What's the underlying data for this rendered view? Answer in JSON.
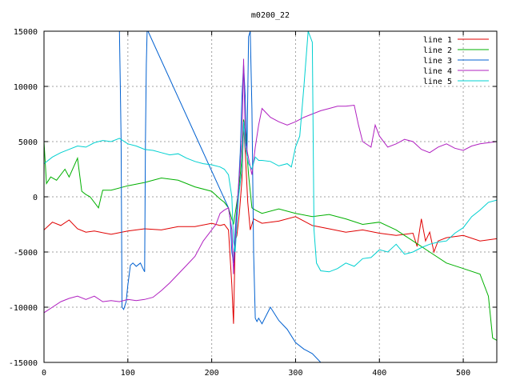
{
  "chart_data": {
    "type": "line",
    "title": "m0200_22",
    "xlim": [
      0,
      540
    ],
    "ylim": [
      -15000,
      15000
    ],
    "x_ticks": [
      0,
      100,
      200,
      300,
      400,
      500
    ],
    "y_ticks": [
      -15000,
      -10000,
      -5000,
      0,
      5000,
      10000,
      15000
    ],
    "x_tick_labels": [
      "0",
      "100",
      "200",
      "300",
      "400",
      "500"
    ],
    "y_tick_labels": [
      "-15000",
      "-10000",
      "-5000",
      "0",
      "5000",
      "10000",
      "15000"
    ],
    "grid": true,
    "legend_position": "top-right",
    "series": [
      {
        "name": "line 1",
        "color": "#e00000",
        "x": [
          0,
          10,
          20,
          30,
          40,
          50,
          60,
          80,
          100,
          120,
          140,
          160,
          180,
          200,
          210,
          215,
          220,
          224,
          226,
          228,
          230,
          233,
          236,
          238,
          240,
          243,
          246,
          250,
          255,
          260,
          280,
          300,
          320,
          340,
          360,
          380,
          400,
          420,
          440,
          445,
          450,
          455,
          460,
          465,
          470,
          480,
          500,
          520,
          540
        ],
        "y": [
          -3000,
          -2300,
          -2600,
          -2100,
          -2900,
          -3200,
          -3100,
          -3400,
          -3100,
          -2900,
          -3000,
          -2700,
          -2700,
          -2400,
          -2600,
          -2500,
          -3000,
          -8000,
          -11500,
          -4000,
          -3500,
          -1500,
          1500,
          6500,
          4000,
          -500,
          -3000,
          -2000,
          -2200,
          -2400,
          -2200,
          -1800,
          -2600,
          -2900,
          -3200,
          -3000,
          -3300,
          -3500,
          -3300,
          -4500,
          -2000,
          -4000,
          -3200,
          -5000,
          -4000,
          -3700,
          -3500,
          -4000,
          -3800
        ]
      },
      {
        "name": "line 2",
        "color": "#00b000",
        "x": [
          0,
          3,
          8,
          15,
          25,
          30,
          40,
          45,
          50,
          55,
          60,
          65,
          70,
          80,
          100,
          120,
          140,
          160,
          180,
          200,
          210,
          215,
          220,
          224,
          226,
          228,
          232,
          236,
          238,
          240,
          244,
          248,
          252,
          260,
          280,
          300,
          320,
          340,
          360,
          380,
          400,
          420,
          440,
          460,
          480,
          500,
          520,
          530,
          535,
          540
        ],
        "y": [
          5000,
          1200,
          1800,
          1500,
          2500,
          1800,
          3500,
          500,
          200,
          0,
          -500,
          -1000,
          600,
          600,
          1000,
          1300,
          1700,
          1500,
          900,
          500,
          -200,
          -500,
          -1000,
          -2000,
          -2500,
          -1500,
          500,
          3500,
          7000,
          6000,
          2000,
          -1000,
          -1200,
          -1500,
          -1100,
          -1500,
          -1800,
          -1600,
          -2000,
          -2500,
          -2300,
          -3000,
          -4000,
          -5000,
          -6000,
          -6500,
          -7000,
          -9000,
          -12800,
          -13000
        ]
      },
      {
        "name": "line 3",
        "color": "#0060d0",
        "x": [
          90,
          91,
          92,
          93,
          95,
          98,
          100,
          103,
          106,
          110,
          115,
          118,
          120,
          121,
          122,
          123,
          124,
          220,
          222,
          224,
          226,
          228,
          230,
          232,
          234,
          236,
          238,
          240,
          242,
          244,
          246,
          248,
          250,
          252,
          254,
          256,
          260,
          270,
          280,
          290,
          300,
          310,
          320,
          330
        ],
        "y": [
          15000,
          10000,
          5000,
          -10000,
          -10200,
          -9500,
          -8000,
          -6200,
          -6000,
          -6300,
          -6000,
          -6500,
          -6800,
          5000,
          12000,
          15000,
          15000,
          -1000,
          -2000,
          -5000,
          -6000,
          -3000,
          -1000,
          1000,
          4000,
          9000,
          12000,
          9000,
          4000,
          14500,
          15000,
          8000,
          -5000,
          -11000,
          -11300,
          -11000,
          -11500,
          -10000,
          -11200,
          -12000,
          -13200,
          -13800,
          -14200,
          -15000
        ]
      },
      {
        "name": "line 4",
        "color": "#b020c0",
        "x": [
          0,
          10,
          20,
          30,
          40,
          50,
          60,
          70,
          80,
          90,
          100,
          110,
          120,
          130,
          140,
          150,
          160,
          170,
          180,
          190,
          200,
          205,
          210,
          215,
          220,
          224,
          226,
          228,
          232,
          236,
          238,
          240,
          244,
          248,
          252,
          256,
          260,
          270,
          280,
          290,
          300,
          310,
          320,
          330,
          340,
          350,
          360,
          370,
          375,
          380,
          390,
          395,
          400,
          410,
          420,
          430,
          440,
          450,
          460,
          470,
          480,
          490,
          500,
          510,
          520,
          530,
          540
        ],
        "y": [
          -10500,
          -10000,
          -9500,
          -9200,
          -9000,
          -9300,
          -9000,
          -9500,
          -9400,
          -9500,
          -9300,
          -9400,
          -9300,
          -9100,
          -8500,
          -7800,
          -7000,
          -6200,
          -5400,
          -4000,
          -3000,
          -2500,
          -1500,
          -1200,
          -1000,
          -3000,
          -7000,
          -4000,
          1000,
          5000,
          12500,
          5000,
          3500,
          2000,
          4500,
          6500,
          8000,
          7200,
          6800,
          6500,
          6800,
          7200,
          7500,
          7800,
          8000,
          8200,
          8200,
          8300,
          6500,
          5000,
          4500,
          6500,
          5500,
          4500,
          4800,
          5200,
          5000,
          4300,
          4000,
          4500,
          4800,
          4400,
          4200,
          4600,
          4800,
          4900,
          5000
        ]
      },
      {
        "name": "line 5",
        "color": "#00d0d0",
        "x": [
          0,
          10,
          20,
          30,
          40,
          50,
          60,
          70,
          80,
          90,
          100,
          110,
          120,
          130,
          140,
          150,
          160,
          170,
          180,
          190,
          200,
          210,
          215,
          220,
          224,
          226,
          228,
          232,
          236,
          238,
          240,
          244,
          248,
          252,
          256,
          260,
          270,
          280,
          290,
          295,
          300,
          305,
          310,
          315,
          320,
          322,
          325,
          330,
          340,
          350,
          360,
          370,
          380,
          390,
          400,
          410,
          420,
          430,
          440,
          450,
          460,
          470,
          480,
          490,
          500,
          510,
          520,
          530,
          540
        ],
        "y": [
          3000,
          3600,
          4000,
          4300,
          4600,
          4500,
          4900,
          5100,
          5000,
          5300,
          4800,
          4600,
          4300,
          4200,
          4000,
          3800,
          3900,
          3500,
          3200,
          3000,
          2900,
          2700,
          2500,
          2000,
          0,
          -4000,
          -5000,
          0,
          2500,
          6800,
          4500,
          3000,
          2500,
          3600,
          3300,
          3300,
          3200,
          2800,
          3000,
          2700,
          4500,
          5500,
          10000,
          15000,
          14000,
          -3000,
          -6000,
          -6700,
          -6800,
          -6500,
          -6000,
          -6300,
          -5600,
          -5500,
          -4800,
          -5000,
          -4300,
          -5200,
          -5000,
          -4600,
          -4300,
          -4100,
          -4000,
          -3300,
          -2800,
          -1800,
          -1200,
          -500,
          -300
        ]
      }
    ]
  }
}
